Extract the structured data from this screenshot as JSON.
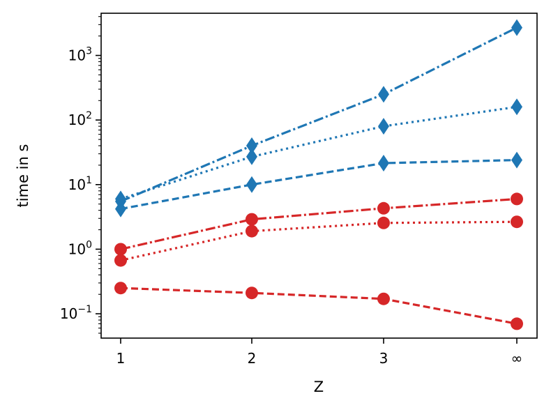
{
  "chart_data": {
    "type": "line",
    "title": "",
    "xlabel": "Z",
    "ylabel": "time in s",
    "yscale": "log",
    "ylim": [
      0.042,
      4500
    ],
    "categories": [
      "1",
      "2",
      "3",
      "∞"
    ],
    "y_ticks": [
      {
        "value": 0.1,
        "base": "10",
        "exp": "−1"
      },
      {
        "value": 1,
        "base": "10",
        "exp": "0"
      },
      {
        "value": 10,
        "base": "10",
        "exp": "1"
      },
      {
        "value": 100,
        "base": "10",
        "exp": "2"
      },
      {
        "value": 1000,
        "base": "10",
        "exp": "3"
      }
    ],
    "grid": false,
    "legend": "none",
    "series": [
      {
        "color": "#1f77b4",
        "marker": "diamond",
        "linestyle": "dashdot",
        "values": [
          5.5,
          40,
          250,
          2700
        ]
      },
      {
        "color": "#1f77b4",
        "marker": "diamond",
        "linestyle": "dotted",
        "values": [
          6,
          27,
          80,
          160
        ]
      },
      {
        "color": "#1f77b4",
        "marker": "diamond",
        "linestyle": "dashed",
        "values": [
          4.2,
          10,
          21.5,
          24
        ]
      },
      {
        "color": "#d62728",
        "marker": "circle",
        "linestyle": "dashdot",
        "values": [
          1.0,
          2.9,
          4.3,
          6.0
        ]
      },
      {
        "color": "#d62728",
        "marker": "circle",
        "linestyle": "dotted",
        "values": [
          0.67,
          1.9,
          2.55,
          2.65
        ]
      },
      {
        "color": "#d62728",
        "marker": "circle",
        "linestyle": "dashed",
        "values": [
          0.25,
          0.21,
          0.17,
          0.07
        ]
      }
    ]
  }
}
